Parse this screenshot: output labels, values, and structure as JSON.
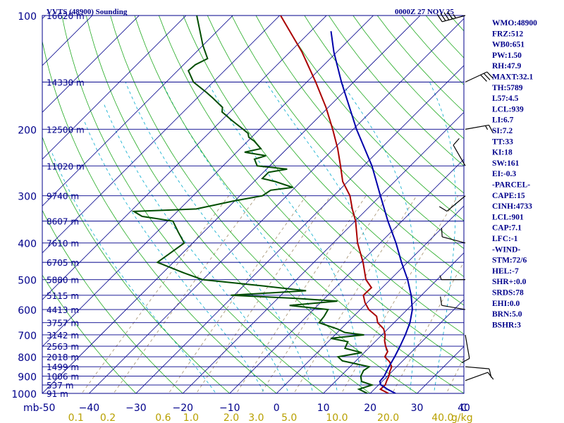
{
  "chart_data": {
    "type": "line",
    "title": "VVTS (48900) Sounding",
    "valid_time": "0000Z 27 NOV 25",
    "xlabel": "",
    "ylabel": "mb",
    "x_range": [
      -50,
      40
    ],
    "y_range": [
      100,
      1000
    ],
    "skew": true,
    "log_pressure": true,
    "temperature_ticks": [
      -50,
      -40,
      -30,
      -20,
      -10,
      0,
      10,
      20,
      30,
      40
    ],
    "temperature_tick_labels": [
      "mb-50",
      "−40",
      "−30",
      "−20",
      "−10",
      "0",
      "10",
      "20",
      "30",
      "40"
    ],
    "pressure_ticks": [
      100,
      200,
      300,
      400,
      500,
      600,
      700,
      800,
      900,
      1000
    ],
    "mixing_ratio_ticks": [
      0.1,
      0.2,
      0.6,
      1.0,
      2.0,
      3.0,
      5.0,
      10.0,
      20.0,
      40.0
    ],
    "mixing_ratio_label": "g/kg",
    "mixing_ratio_tick_labels": [
      "0.1",
      "0.2",
      "0.6",
      "1.0",
      "2.0",
      "3.0",
      "5.0",
      "10.0",
      "20.0",
      "40.0"
    ],
    "corner_label": "C",
    "height_levels": [
      {
        "p": 100,
        "label": "16620 m"
      },
      {
        "p": 150,
        "label": "14330 m"
      },
      {
        "p": 200,
        "label": "12500 m"
      },
      {
        "p": 250,
        "label": "11020 m"
      },
      {
        "p": 300,
        "label": "9740 m"
      },
      {
        "p": 350,
        "label": "8607 m"
      },
      {
        "p": 400,
        "label": "7610 m"
      },
      {
        "p": 450,
        "label": "6705 m"
      },
      {
        "p": 500,
        "label": "5880 m"
      },
      {
        "p": 550,
        "label": "5115 m"
      },
      {
        "p": 600,
        "label": "4413 m"
      },
      {
        "p": 650,
        "label": "3757 m"
      },
      {
        "p": 700,
        "label": "3142 m"
      },
      {
        "p": 750,
        "label": "2563 m"
      },
      {
        "p": 800,
        "label": "2018 m"
      },
      {
        "p": 850,
        "label": "1499 m"
      },
      {
        "p": 900,
        "label": "1006 m"
      },
      {
        "p": 950,
        "label": "537 m"
      },
      {
        "p": 1000,
        "label": "91 m"
      }
    ],
    "series": [
      {
        "name": "",
        "color": "#aa0000",
        "points": [
          {
            "p": 1000,
            "t": 23.9
          },
          {
            "p": 975,
            "t": 21.3
          },
          {
            "p": 950,
            "t": 21.4
          },
          {
            "p": 925,
            "t": 20.8
          },
          {
            "p": 900,
            "t": 20.3
          },
          {
            "p": 875,
            "t": 19.5
          },
          {
            "p": 850,
            "t": 18.9
          },
          {
            "p": 825,
            "t": 17.4
          },
          {
            "p": 800,
            "t": 15.3
          },
          {
            "p": 775,
            "t": 14.8
          },
          {
            "p": 750,
            "t": 13.2
          },
          {
            "p": 725,
            "t": 11.8
          },
          {
            "p": 700,
            "t": 10.7
          },
          {
            "p": 675,
            "t": 9.1
          },
          {
            "p": 650,
            "t": 6.5
          },
          {
            "p": 625,
            "t": 4.9
          },
          {
            "p": 600,
            "t": 1.8
          },
          {
            "p": 575,
            "t": -0.5
          },
          {
            "p": 550,
            "t": -2.4
          },
          {
            "p": 525,
            "t": -2.3
          },
          {
            "p": 500,
            "t": -5.2
          },
          {
            "p": 450,
            "t": -9.5
          },
          {
            "p": 400,
            "t": -14.8
          },
          {
            "p": 350,
            "t": -19.9
          },
          {
            "p": 325,
            "t": -23.2
          },
          {
            "p": 300,
            "t": -26.5
          },
          {
            "p": 275,
            "t": -31.1
          },
          {
            "p": 250,
            "t": -34.9
          },
          {
            "p": 225,
            "t": -39.2
          },
          {
            "p": 200,
            "t": -44.4
          },
          {
            "p": 175,
            "t": -50.5
          },
          {
            "p": 150,
            "t": -58.1
          },
          {
            "p": 125,
            "t": -67.4
          },
          {
            "p": 100,
            "t": -79.8
          }
        ]
      },
      {
        "name": "",
        "color": "#004d00",
        "points": [
          {
            "p": 1000,
            "t": 19.4
          },
          {
            "p": 975,
            "t": 16.7
          },
          {
            "p": 950,
            "t": 18.6
          },
          {
            "p": 930,
            "t": 15.6
          },
          {
            "p": 900,
            "t": 14.3
          },
          {
            "p": 870,
            "t": 13.7
          },
          {
            "p": 850,
            "t": 14.1
          },
          {
            "p": 820,
            "t": 7.1
          },
          {
            "p": 800,
            "t": 5.3
          },
          {
            "p": 780,
            "t": 9.5
          },
          {
            "p": 760,
            "t": 5.0
          },
          {
            "p": 730,
            "t": 4.2
          },
          {
            "p": 715,
            "t": -0.2
          },
          {
            "p": 700,
            "t": 6.2
          },
          {
            "p": 690,
            "t": 1.6
          },
          {
            "p": 675,
            "t": -0.8
          },
          {
            "p": 650,
            "t": -6.0
          },
          {
            "p": 625,
            "t": -6.3
          },
          {
            "p": 600,
            "t": -6.9
          },
          {
            "p": 585,
            "t": -16.0
          },
          {
            "p": 570,
            "t": -6.7
          },
          {
            "p": 560,
            "t": -16.8
          },
          {
            "p": 550,
            "t": -30.7
          },
          {
            "p": 535,
            "t": -15.6
          },
          {
            "p": 520,
            "t": -25.5
          },
          {
            "p": 500,
            "t": -40.1
          },
          {
            "p": 480,
            "t": -45.5
          },
          {
            "p": 450,
            "t": -53.4
          },
          {
            "p": 400,
            "t": -51.8
          },
          {
            "p": 375,
            "t": -55.3
          },
          {
            "p": 350,
            "t": -58.9
          },
          {
            "p": 340,
            "t": -66.5
          },
          {
            "p": 330,
            "t": -69.3
          },
          {
            "p": 325,
            "t": -56.5
          },
          {
            "p": 310,
            "t": -50.4
          },
          {
            "p": 300,
            "t": -45.2
          },
          {
            "p": 290,
            "t": -44.6
          },
          {
            "p": 285,
            "t": -40.5
          },
          {
            "p": 275,
            "t": -45.5
          },
          {
            "p": 270,
            "t": -48.9
          },
          {
            "p": 260,
            "t": -48.9
          },
          {
            "p": 255,
            "t": -45.6
          },
          {
            "p": 250,
            "t": -52.7
          },
          {
            "p": 240,
            "t": -54.7
          },
          {
            "p": 235,
            "t": -53.0
          },
          {
            "p": 230,
            "t": -58.3
          },
          {
            "p": 225,
            "t": -55.6
          },
          {
            "p": 215,
            "t": -58.6
          },
          {
            "p": 210,
            "t": -60.6
          },
          {
            "p": 205,
            "t": -61.6
          },
          {
            "p": 200,
            "t": -63.5
          },
          {
            "p": 190,
            "t": -67.6
          },
          {
            "p": 180,
            "t": -71.7
          },
          {
            "p": 175,
            "t": -72.6
          },
          {
            "p": 165,
            "t": -76.8
          },
          {
            "p": 160,
            "t": -79.1
          },
          {
            "p": 150,
            "t": -84.2
          },
          {
            "p": 140,
            "t": -87.7
          },
          {
            "p": 135,
            "t": -87.5
          },
          {
            "p": 130,
            "t": -86.2
          },
          {
            "p": 120,
            "t": -90.0
          },
          {
            "p": 100,
            "t": -97.7
          }
        ]
      },
      {
        "name": "",
        "color": "#0000aa",
        "points": [
          {
            "p": 1000,
            "t": 25.4
          },
          {
            "p": 975,
            "t": 22.8
          },
          {
            "p": 950,
            "t": 20.5
          },
          {
            "p": 930,
            "t": 19.5
          },
          {
            "p": 900,
            "t": 19.3
          },
          {
            "p": 850,
            "t": 18.3
          },
          {
            "p": 800,
            "t": 17.4
          },
          {
            "p": 750,
            "t": 16.3
          },
          {
            "p": 700,
            "t": 15.0
          },
          {
            "p": 650,
            "t": 13.4
          },
          {
            "p": 600,
            "t": 11.1
          },
          {
            "p": 550,
            "t": 7.8
          },
          {
            "p": 500,
            "t": 3.7
          },
          {
            "p": 450,
            "t": -1.3
          },
          {
            "p": 400,
            "t": -6.6
          },
          {
            "p": 350,
            "t": -13.0
          },
          {
            "p": 300,
            "t": -20.0
          },
          {
            "p": 250,
            "t": -28.2
          },
          {
            "p": 200,
            "t": -39.3
          },
          {
            "p": 150,
            "t": -52.6
          },
          {
            "p": 125,
            "t": -60.6
          },
          {
            "p": 110,
            "t": -65.7
          }
        ]
      }
    ],
    "wind_barbs": [
      {
        "p": 100,
        "dir": 255,
        "spd": 45
      },
      {
        "p": 150,
        "dir": 65,
        "spd": 30
      },
      {
        "p": 200,
        "dir": 80,
        "spd": 15
      },
      {
        "p": 250,
        "dir": 330,
        "spd": 10
      },
      {
        "p": 300,
        "dir": 230,
        "spd": 10
      },
      {
        "p": 400,
        "dir": 285,
        "spd": 10
      },
      {
        "p": 500,
        "dir": 270,
        "spd": 5
      },
      {
        "p": 600,
        "dir": 280,
        "spd": 10
      },
      {
        "p": 700,
        "dir": 170,
        "spd": 10
      },
      {
        "p": 850,
        "dir": 95,
        "spd": 10
      },
      {
        "p": 925,
        "dir": 70,
        "spd": 10
      }
    ]
  },
  "indices": [
    "WMO:48900",
    "FRZ:512",
    "WB0:651",
    "PW:1.50",
    "RH:47.9",
    "MAXT:32.1",
    "TH:5789",
    "L57:4.5",
    "LCL:939",
    "LI:6.7",
    "SI:7.2",
    "TT:33",
    "KI:18",
    "SW:161",
    "EI:-0.3",
    "-PARCEL-",
    "CAPE:15",
    "CINH:4733",
    "LCL:901",
    "CAP:7.1",
    "LFC:-1",
    "-WIND-",
    "STM:72/6",
    "HEL:-7",
    "SHR+:0.0",
    "SRDS:78",
    "EHI:0.0",
    "BRN:5.0",
    "BSHR:3"
  ],
  "colors": {
    "isobar": "#00008b",
    "isotherm": "#00008b",
    "dry_adiabat": "#22aa22",
    "moist_adiabat": "#00aacc",
    "mixing_ratio": "#a08c6a",
    "temperature": "#aa0000",
    "dewpoint": "#004d00",
    "parcel": "#0000aa",
    "text": "#00008b",
    "mixing_label": "#b8a000"
  }
}
